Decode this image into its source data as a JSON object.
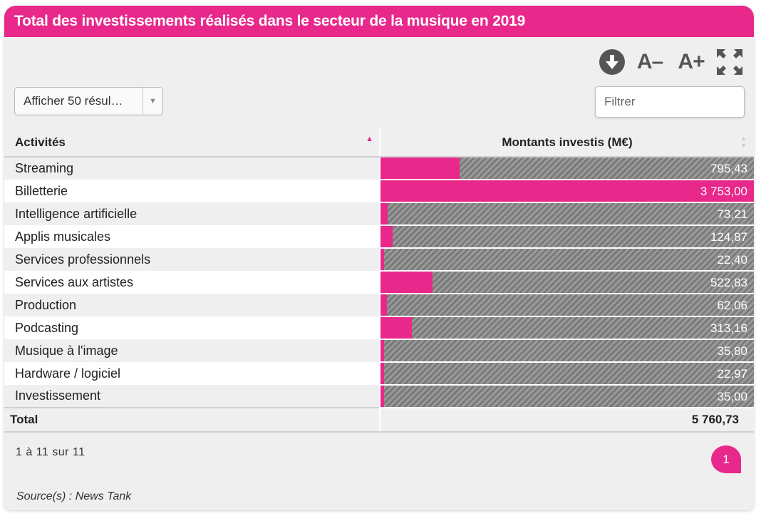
{
  "title": "Total des investissements réalisés dans le secteur de la musique en 2019",
  "toolbar": {
    "download_icon": "download-circle-icon",
    "font_decrease_label": "A–",
    "font_increase_label": "A+",
    "fullscreen_icon": "fullscreen-icon"
  },
  "length_select": {
    "value": "Afficher 50 résul…",
    "options": [
      "Afficher 50 résul…"
    ]
  },
  "filter": {
    "placeholder": "Filtrer",
    "value": ""
  },
  "columns": {
    "activity": "Activités",
    "amount": "Montants investis (M€)"
  },
  "chart_data": {
    "type": "bar",
    "categories": [
      "Streaming",
      "Billetterie",
      "Intelligence artificielle",
      "Applis musicales",
      "Services professionnels",
      "Services aux artistes",
      "Production",
      "Podcasting",
      "Musique à l'image",
      "Hardware / logiciel",
      "Investissement"
    ],
    "values": [
      795.43,
      3753.0,
      73.21,
      124.87,
      22.4,
      522.83,
      62.06,
      313.16,
      35.8,
      22.97,
      35.0
    ],
    "value_labels": [
      "795,43",
      "3 753,00",
      "73,21",
      "124,87",
      "22,40",
      "522,83",
      "62,06",
      "313,16",
      "35,80",
      "22,97",
      "35,00"
    ],
    "title": "Total des investissements réalisés dans le secteur de la musique en 2019",
    "xlabel": "Activités",
    "ylabel": "Montants investis (M€)",
    "ylim": [
      0,
      3753.0
    ],
    "colors": {
      "bar": "#e8288a",
      "background": "#8c8c8c"
    }
  },
  "total": {
    "label": "Total",
    "value": "5 760,73"
  },
  "pagination": {
    "info": "1 à 11 sur 11",
    "current_page": "1"
  },
  "source": "Source(s) : News Tank",
  "colors": {
    "accent": "#e8288a",
    "panel": "#efefef"
  }
}
